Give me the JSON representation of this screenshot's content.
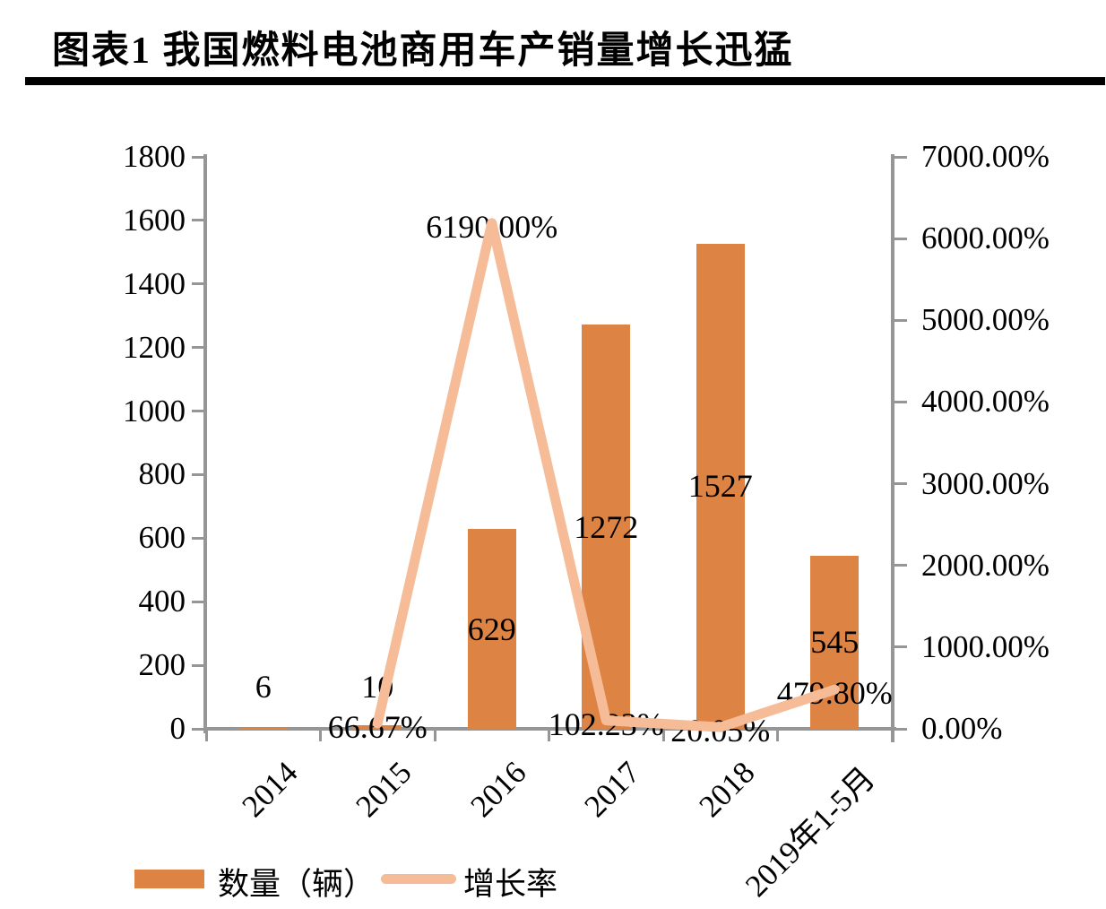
{
  "title": "图表1 我国燃料电池商用车产销量增长迅猛",
  "colors": {
    "bar": "#DD8344",
    "line": "#F6BB97",
    "axis": "#969696",
    "text": "#000000",
    "title_rule": "#000000"
  },
  "chart_data": {
    "type": "bar",
    "subtype": "bar-and-line-combo",
    "categories": [
      "2014",
      "2015",
      "2016",
      "2017",
      "2018",
      "2019年1-5月"
    ],
    "series": [
      {
        "name": "数量（辆）",
        "type": "bar",
        "axis": "left",
        "values": [
          6,
          10,
          629,
          1272,
          1527,
          545
        ],
        "labels": [
          "6",
          "10",
          "629",
          "1272",
          "1527",
          "545"
        ]
      },
      {
        "name": "增长率",
        "type": "line",
        "axis": "right",
        "values": [
          null,
          66.67,
          6190.0,
          102.23,
          20.05,
          479.8
        ],
        "labels": [
          "",
          "66.67%",
          "6190.00%",
          "102.23%",
          "20.05%",
          "479.80%"
        ]
      }
    ],
    "left_axis": {
      "min": 0,
      "max": 1800,
      "step": 200,
      "ticks": [
        "1800",
        "1600",
        "1400",
        "1200",
        "1000",
        "800",
        "600",
        "400",
        "200",
        "0"
      ]
    },
    "right_axis": {
      "min": 0,
      "max": 7000,
      "step": 1000,
      "ticks": [
        "7000.00%",
        "6000.00%",
        "5000.00%",
        "4000.00%",
        "3000.00%",
        "2000.00%",
        "1000.00%",
        "0.00%"
      ]
    },
    "legend": [
      {
        "label": "数量（辆）",
        "marker": "bar"
      },
      {
        "label": "增长率",
        "marker": "line"
      }
    ],
    "grid": false,
    "legend_position": "bottom-left"
  }
}
